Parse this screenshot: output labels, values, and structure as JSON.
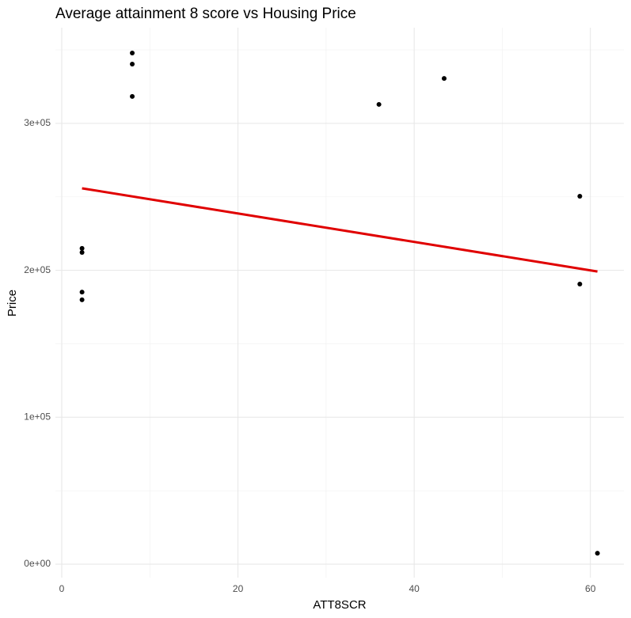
{
  "chart_data": {
    "type": "scatter",
    "title": "Average attainment 8 score vs Housing Price",
    "x_label": "ATT8SCR",
    "y_label": "Price",
    "x": [
      2.3,
      2.3,
      2.3,
      2.3,
      8,
      8,
      8,
      36,
      43.4,
      58.8,
      58.8,
      60.8
    ],
    "values": [
      214900,
      212200,
      185200,
      179900,
      347900,
      340300,
      318300,
      312900,
      330600,
      250400,
      190600,
      7500
    ],
    "color": "#000000",
    "trend": {
      "x": [
        2.3,
        60.8
      ],
      "values": [
        255800,
        199200
      ],
      "color": "#e00000"
    },
    "xlim": [
      -0.72,
      63.8
    ],
    "ylim": [
      -9150,
      365100
    ],
    "xticks": [
      0,
      20,
      40,
      60
    ],
    "yticks": [
      {
        "value": 0,
        "label": "0e+00"
      },
      {
        "value": 100000,
        "label": "1e+05"
      },
      {
        "value": 200000,
        "label": "2e+05"
      },
      {
        "value": 300000,
        "label": "3e+05"
      }
    ],
    "minor_xticks": [
      10,
      30,
      50
    ],
    "minor_yticks": [
      50000,
      150000,
      250000,
      350000
    ],
    "grid": true
  }
}
